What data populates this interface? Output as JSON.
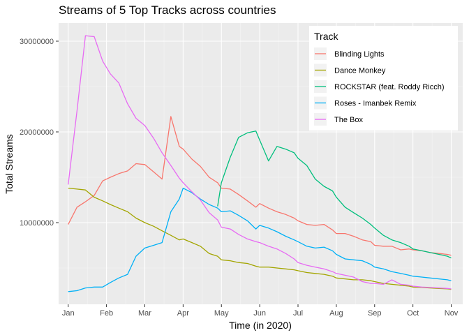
{
  "chart_data": {
    "type": "line",
    "title": "Streams of 5 Top Tracks across countries",
    "xlabel": "Time (in 2020)",
    "ylabel": "Total Streams",
    "x_tick_labels": [
      "Jan",
      "Feb",
      "Mar",
      "Apr",
      "May",
      "Jun",
      "Jul",
      "Aug",
      "Sep",
      "Oct",
      "Nov"
    ],
    "y_ticks": [
      10000000,
      20000000,
      30000000
    ],
    "y_tick_labels": [
      "10000000",
      "20000000",
      "30000000"
    ],
    "ylim": [
      1000000,
      32000000
    ],
    "xlim": [
      -0.25,
      10.3
    ],
    "grid": true,
    "legend": {
      "title": "Track",
      "position": "top-right"
    },
    "x": [
      0.0,
      0.23,
      0.45,
      0.68,
      0.9,
      1.1,
      1.32,
      1.55,
      1.77,
      2.0,
      2.23,
      2.45,
      2.68,
      2.9,
      3.0,
      3.23,
      3.45,
      3.68,
      3.9,
      4.0,
      4.23,
      4.45,
      4.68,
      4.9,
      5.0,
      5.23,
      5.45,
      5.68,
      5.9,
      6.0,
      6.23,
      6.45,
      6.68,
      6.9,
      7.0,
      7.23,
      7.45,
      7.68,
      7.9,
      8.0,
      8.23,
      8.45,
      8.68,
      8.9,
      9.0,
      9.23,
      9.45,
      9.68,
      9.9,
      10.0
    ],
    "series": [
      {
        "name": "Blinding Lights",
        "color": "#F8766D",
        "values": [
          9800000,
          11700000,
          12300000,
          13000000,
          14600000,
          15000000,
          15400000,
          15700000,
          16500000,
          16400000,
          15600000,
          14800000,
          21700000,
          18400000,
          18100000,
          17000000,
          16200000,
          15000000,
          14400000,
          13800000,
          13700000,
          13100000,
          12400000,
          11700000,
          12100000,
          11600000,
          11200000,
          10900000,
          10500000,
          10200000,
          9800000,
          9700000,
          9800000,
          9200000,
          8800000,
          8800000,
          8500000,
          8100000,
          7900000,
          7500000,
          7400000,
          7400000,
          7000000,
          7100000,
          7000000,
          6900000,
          6700000,
          6600000,
          6500000,
          6400000
        ]
      },
      {
        "name": "Dance Monkey",
        "color": "#A3A500",
        "values": [
          13800000,
          13700000,
          13600000,
          12800000,
          12400000,
          12000000,
          11600000,
          11200000,
          10500000,
          10000000,
          9600000,
          9100000,
          8600000,
          8100000,
          8200000,
          7800000,
          7400000,
          6600000,
          6300000,
          5900000,
          5800000,
          5600000,
          5500000,
          5200000,
          5100000,
          5100000,
          5000000,
          4900000,
          4800000,
          4700000,
          4500000,
          4400000,
          4300000,
          4100000,
          3900000,
          3800000,
          3700000,
          3700000,
          3600000,
          3500000,
          3300000,
          3200000,
          3100000,
          3000000,
          2900000,
          2850000,
          2800000,
          2750000,
          2700000,
          2650000
        ]
      },
      {
        "name": "ROCKSTAR (feat. Roddy Ricch)",
        "color": "#00BF7D",
        "values": [
          null,
          null,
          null,
          null,
          null,
          null,
          null,
          null,
          null,
          null,
          null,
          null,
          null,
          null,
          null,
          null,
          null,
          null,
          11800000,
          14400000,
          17200000,
          19400000,
          19900000,
          20100000,
          19100000,
          16800000,
          18400000,
          18100000,
          17700000,
          17100000,
          16300000,
          14800000,
          14000000,
          13500000,
          12800000,
          11700000,
          11100000,
          10500000,
          9800000,
          9400000,
          8600000,
          8100000,
          7800000,
          7400000,
          7100000,
          6900000,
          6700000,
          6500000,
          6300000,
          6100000
        ]
      },
      {
        "name": "Roses - Imanbek Remix",
        "color": "#00B0F6",
        "values": [
          2400000,
          2500000,
          2800000,
          2900000,
          2900000,
          3400000,
          3900000,
          4300000,
          6300000,
          7200000,
          7500000,
          7800000,
          11200000,
          12600000,
          13800000,
          13300000,
          12600000,
          12000000,
          11600000,
          11200000,
          11300000,
          10800000,
          10200000,
          9300000,
          9700000,
          9400000,
          9000000,
          8500000,
          8100000,
          7900000,
          7400000,
          7200000,
          7300000,
          6900000,
          6500000,
          6000000,
          5900000,
          5800000,
          5400000,
          5100000,
          4900000,
          4600000,
          4400000,
          4200000,
          4100000,
          4000000,
          3900000,
          3800000,
          3700000,
          3600000
        ]
      },
      {
        "name": "The Box",
        "color": "#E76BF3",
        "values": [
          14200000,
          22300000,
          30600000,
          30500000,
          27800000,
          26400000,
          25400000,
          23100000,
          21500000,
          20700000,
          19300000,
          17700000,
          16300000,
          14900000,
          14400000,
          13400000,
          12500000,
          11100000,
          10300000,
          9500000,
          9300000,
          8700000,
          8200000,
          7900000,
          7800000,
          7400000,
          7100000,
          6600000,
          6000000,
          5600000,
          5300000,
          5100000,
          4900000,
          4600000,
          4400000,
          4200000,
          4000000,
          3500000,
          3300000,
          3300000,
          3200000,
          3700000,
          3200000,
          3100000,
          3000000,
          2900000,
          2850000,
          2800000,
          2750000,
          2700000
        ]
      }
    ]
  }
}
